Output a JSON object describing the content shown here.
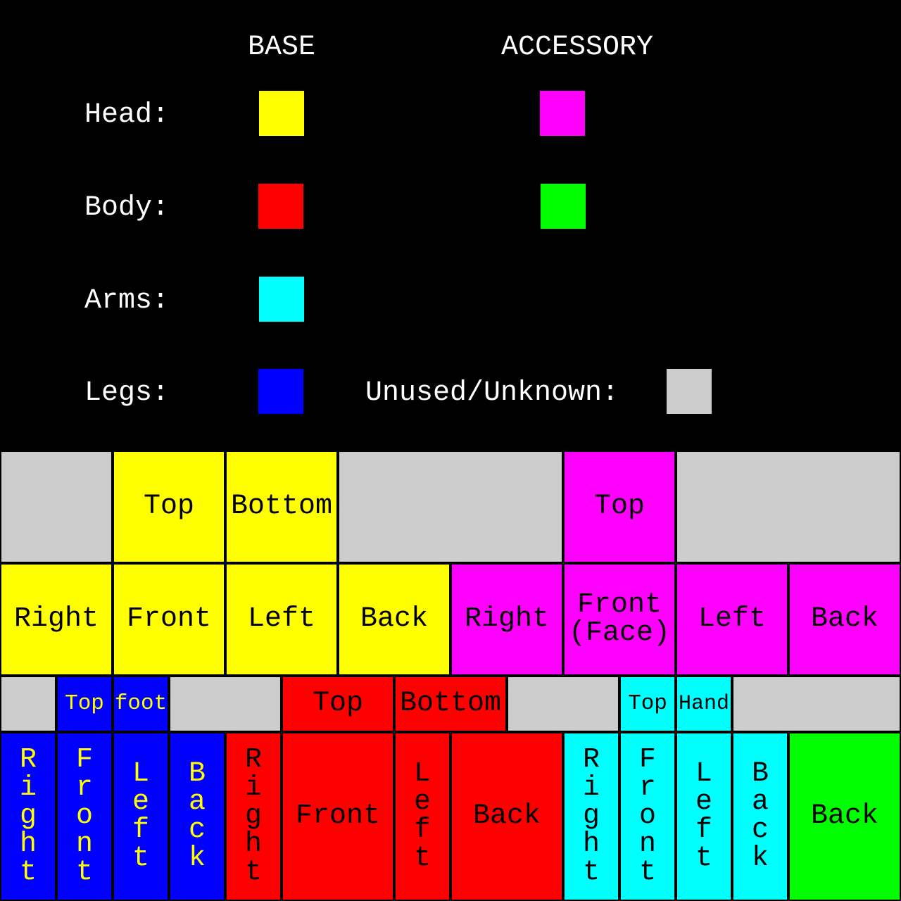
{
  "colors": {
    "head_base": "#ffff00",
    "head_accessory": "#ff00ff",
    "body_base": "#ff0000",
    "body_accessory": "#00ff00",
    "arms_base": "#00ffff",
    "legs_base": "#0000ff",
    "unused": "#cccccc"
  },
  "legend": {
    "base_header": "BASE",
    "accessory_header": "ACCESSORY",
    "head_label": "Head:",
    "body_label": "Body:",
    "arms_label": "Arms:",
    "legs_label": "Legs:",
    "unused_label": "Unused/Unknown:"
  },
  "grid": {
    "rows": [
      [
        {
          "color": "unused",
          "text": ""
        },
        {
          "color": "head_base",
          "text": "Top"
        },
        {
          "color": "head_base",
          "text": "Bottom"
        },
        {
          "color": "unused",
          "text": ""
        },
        {
          "color": "head_accessory",
          "text": "Top"
        },
        {
          "color": "unused",
          "text": ""
        }
      ],
      [
        {
          "color": "head_base",
          "text": "Right"
        },
        {
          "color": "head_base",
          "text": "Front"
        },
        {
          "color": "head_base",
          "text": "Left"
        },
        {
          "color": "head_base",
          "text": "Back"
        },
        {
          "color": "head_accessory",
          "text": "Right"
        },
        {
          "color": "head_accessory",
          "text": "Front\n(Face)"
        },
        {
          "color": "head_accessory",
          "text": "Left"
        },
        {
          "color": "head_accessory",
          "text": "Back"
        }
      ],
      [
        {
          "color": "unused",
          "text": ""
        },
        {
          "color": "legs_base",
          "text": "Top"
        },
        {
          "color": "legs_base",
          "text": "foot"
        },
        {
          "color": "unused",
          "text": ""
        },
        {
          "color": "body_base",
          "text": "Top"
        },
        {
          "color": "body_base",
          "text": "Bottom"
        },
        {
          "color": "unused",
          "text": ""
        },
        {
          "color": "arms_base",
          "text": "Top"
        },
        {
          "color": "arms_base",
          "text": "Hand"
        },
        {
          "color": "unused",
          "text": ""
        }
      ],
      [
        {
          "color": "legs_base",
          "text": "Right"
        },
        {
          "color": "legs_base",
          "text": "Front"
        },
        {
          "color": "legs_base",
          "text": "Left"
        },
        {
          "color": "legs_base",
          "text": "Back"
        },
        {
          "color": "body_base",
          "text": "Right"
        },
        {
          "color": "body_base",
          "text": "Front"
        },
        {
          "color": "body_base",
          "text": "Left"
        },
        {
          "color": "body_base",
          "text": "Back"
        },
        {
          "color": "arms_base",
          "text": "Right"
        },
        {
          "color": "arms_base",
          "text": "Front"
        },
        {
          "color": "arms_base",
          "text": "Left"
        },
        {
          "color": "arms_base",
          "text": "Back"
        },
        {
          "color": "body_accessory",
          "text": "Back"
        }
      ]
    ]
  }
}
